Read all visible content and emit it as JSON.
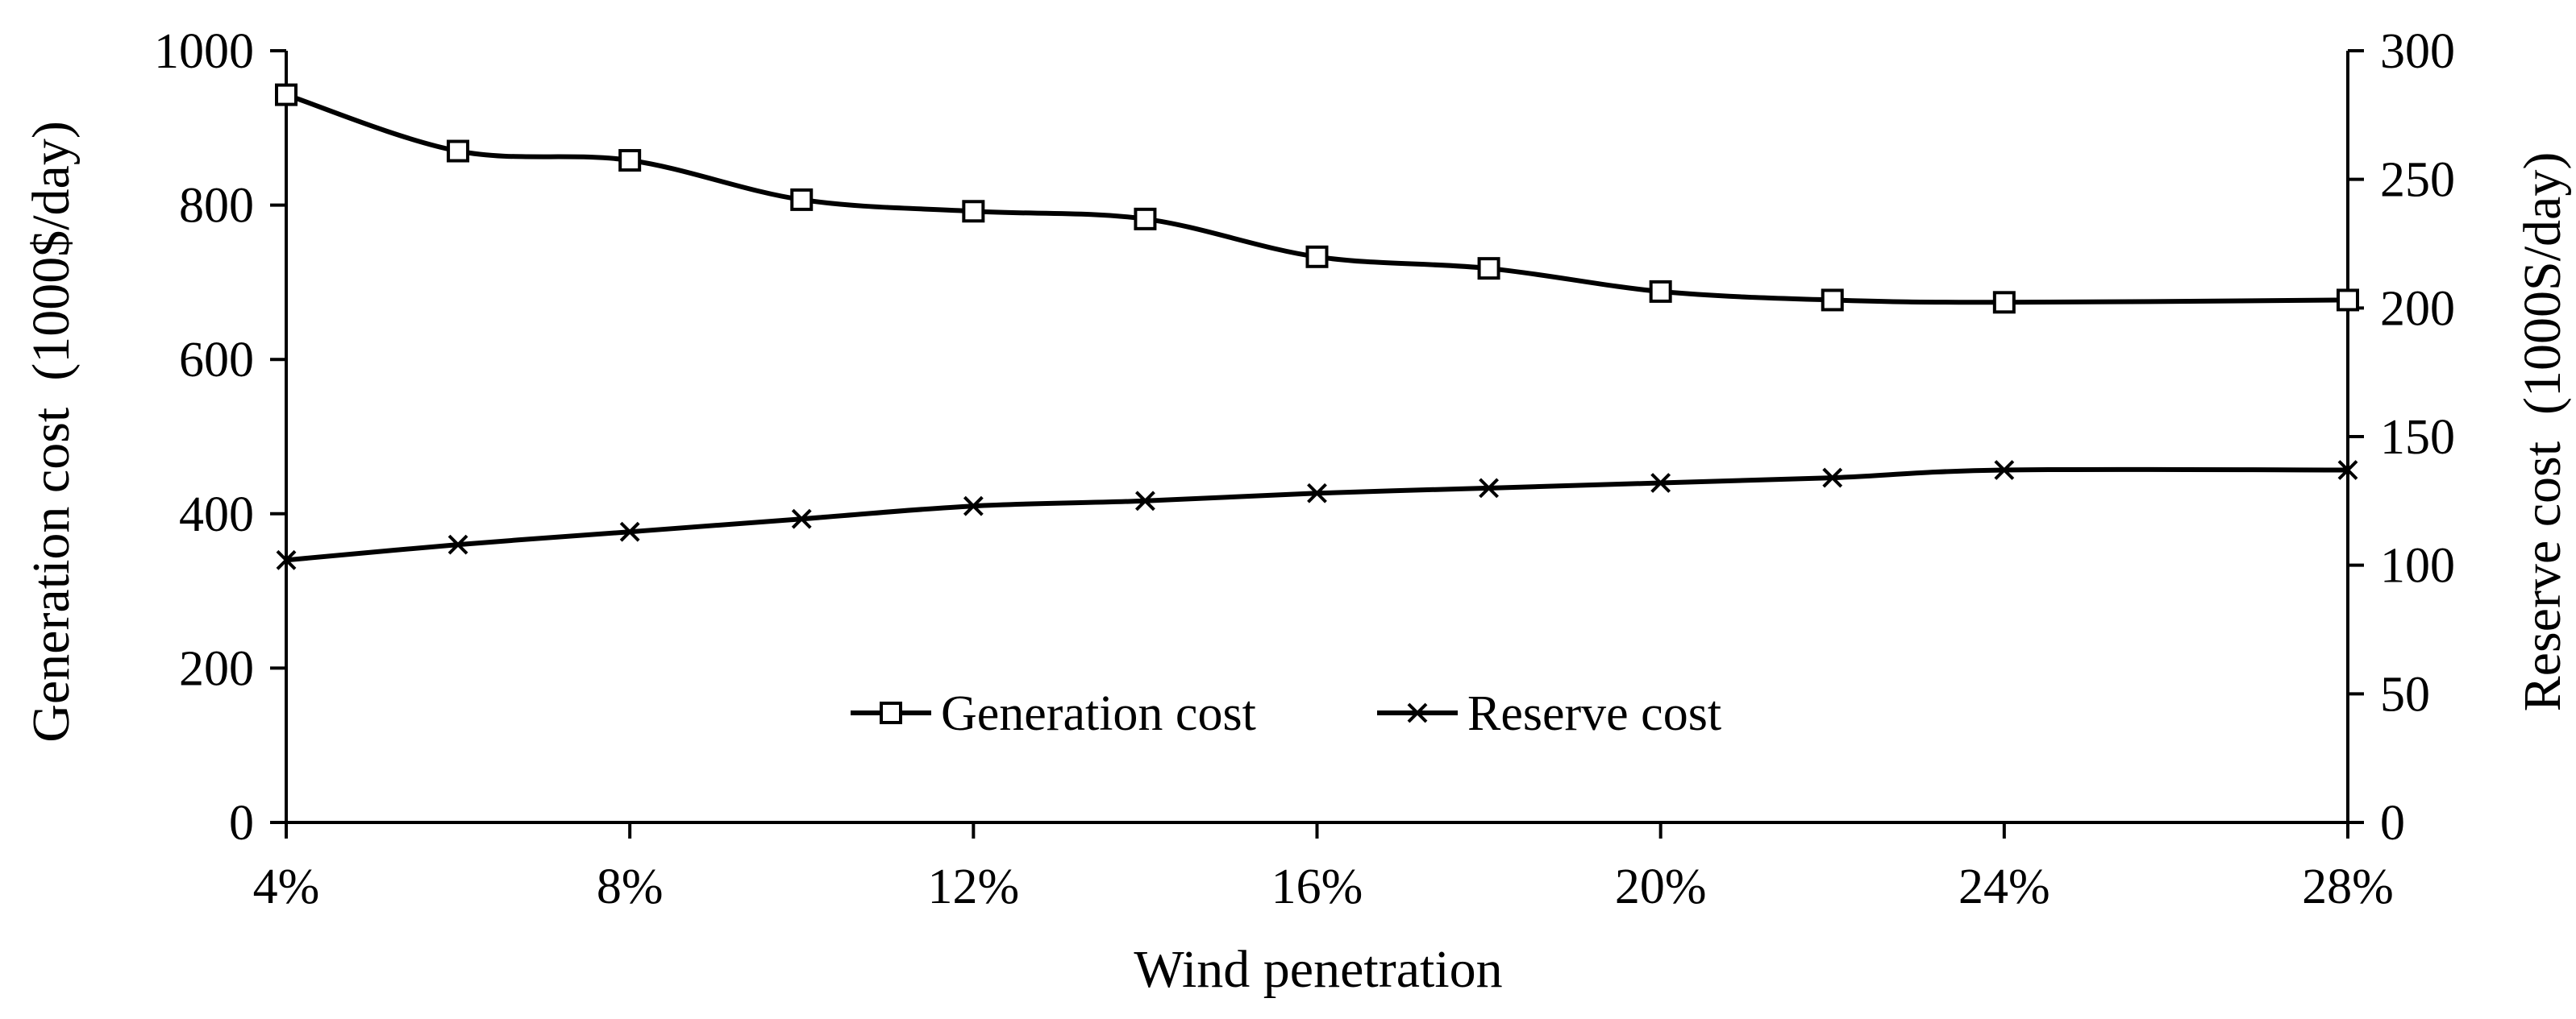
{
  "chart_data": {
    "type": "line",
    "title": "",
    "xlabel": "Wind penetration",
    "ylabel_left": "Generation cost  (1000$/day)",
    "ylabel_right": "Reserve cost  (1000S/day)",
    "x": [
      4,
      6,
      8,
      10,
      12,
      14,
      16,
      18,
      20,
      22,
      24,
      28
    ],
    "xlim": [
      4,
      28
    ],
    "x_ticks": [
      4,
      8,
      12,
      16,
      20,
      24,
      28
    ],
    "x_tick_labels": [
      "4%",
      "8%",
      "12%",
      "16%",
      "20%",
      "24%",
      "28%"
    ],
    "ylim_left": [
      0,
      1000
    ],
    "y_ticks_left": [
      0,
      200,
      400,
      600,
      800,
      1000
    ],
    "y_tick_labels_left": [
      "0",
      "200",
      "400",
      "600",
      "800",
      "1000"
    ],
    "ylim_right": [
      0,
      300
    ],
    "y_ticks_right": [
      0,
      50,
      100,
      150,
      200,
      250,
      300
    ],
    "y_tick_labels_right": [
      "0",
      "50",
      "100",
      "150",
      "200",
      "250",
      "300"
    ],
    "grid": false,
    "legend_position": "center",
    "series": [
      {
        "name": "Generation cost",
        "axis": "left",
        "marker": "square",
        "smooth": true,
        "values": [
          943,
          870,
          858,
          807,
          792,
          782,
          733,
          718,
          688,
          677,
          674,
          677
        ]
      },
      {
        "name": "Reserve cost",
        "axis": "right",
        "marker": "x",
        "smooth": true,
        "values": [
          102,
          108,
          113,
          118,
          123,
          125,
          128,
          130,
          132,
          134,
          137,
          137
        ]
      }
    ]
  }
}
